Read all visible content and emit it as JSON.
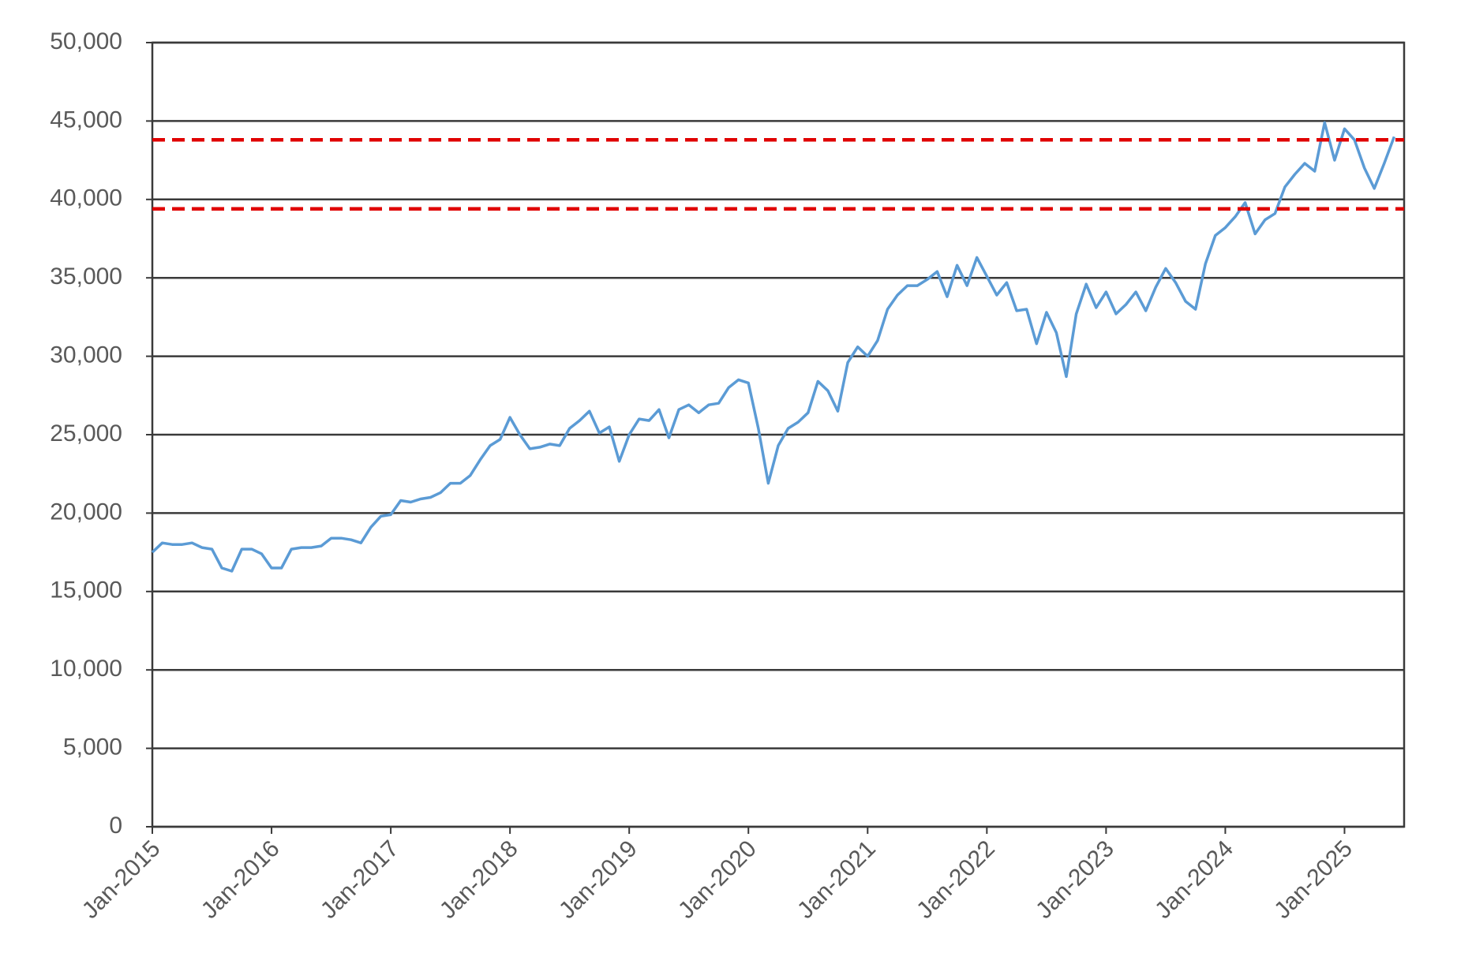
{
  "chart_data": {
    "type": "line",
    "x": [
      "2015-01",
      "2015-02",
      "2015-03",
      "2015-04",
      "2015-05",
      "2015-06",
      "2015-07",
      "2015-08",
      "2015-09",
      "2015-10",
      "2015-11",
      "2015-12",
      "2016-01",
      "2016-02",
      "2016-03",
      "2016-04",
      "2016-05",
      "2016-06",
      "2016-07",
      "2016-08",
      "2016-09",
      "2016-10",
      "2016-11",
      "2016-12",
      "2017-01",
      "2017-02",
      "2017-03",
      "2017-04",
      "2017-05",
      "2017-06",
      "2017-07",
      "2017-08",
      "2017-09",
      "2017-10",
      "2017-11",
      "2017-12",
      "2018-01",
      "2018-02",
      "2018-03",
      "2018-04",
      "2018-05",
      "2018-06",
      "2018-07",
      "2018-08",
      "2018-09",
      "2018-10",
      "2018-11",
      "2018-12",
      "2019-01",
      "2019-02",
      "2019-03",
      "2019-04",
      "2019-05",
      "2019-06",
      "2019-07",
      "2019-08",
      "2019-09",
      "2019-10",
      "2019-11",
      "2019-12",
      "2020-01",
      "2020-02",
      "2020-03",
      "2020-04",
      "2020-05",
      "2020-06",
      "2020-07",
      "2020-08",
      "2020-09",
      "2020-10",
      "2020-11",
      "2020-12",
      "2021-01",
      "2021-02",
      "2021-03",
      "2021-04",
      "2021-05",
      "2021-06",
      "2021-07",
      "2021-08",
      "2021-09",
      "2021-10",
      "2021-11",
      "2021-12",
      "2022-01",
      "2022-02",
      "2022-03",
      "2022-04",
      "2022-05",
      "2022-06",
      "2022-07",
      "2022-08",
      "2022-09",
      "2022-10",
      "2022-11",
      "2022-12",
      "2023-01",
      "2023-02",
      "2023-03",
      "2023-04",
      "2023-05",
      "2023-06",
      "2023-07",
      "2023-08",
      "2023-09",
      "2023-10",
      "2023-11",
      "2023-12",
      "2024-01",
      "2024-02",
      "2024-03",
      "2024-04",
      "2024-05",
      "2024-06",
      "2024-07",
      "2024-08",
      "2024-09",
      "2024-10",
      "2024-11",
      "2024-12",
      "2025-01",
      "2025-02",
      "2025-03",
      "2025-04",
      "2025-05",
      "2025-06"
    ],
    "values": [
      17500,
      18100,
      18000,
      18000,
      18100,
      17800,
      17700,
      16500,
      16300,
      17700,
      17700,
      17400,
      16500,
      16500,
      17700,
      17800,
      17800,
      17900,
      18400,
      18400,
      18300,
      18100,
      19100,
      19800,
      19900,
      20800,
      20700,
      20900,
      21000,
      21300,
      21900,
      21900,
      22400,
      23400,
      24300,
      24700,
      26100,
      25000,
      24100,
      24200,
      24400,
      24300,
      25400,
      25900,
      26500,
      25100,
      25500,
      23300,
      25000,
      26000,
      25900,
      26600,
      24800,
      26600,
      26900,
      26400,
      26900,
      27000,
      28000,
      28500,
      28300,
      25400,
      21900,
      24300,
      25400,
      25800,
      26400,
      28400,
      27800,
      26500,
      29600,
      30600,
      30000,
      31000,
      33000,
      33900,
      34500,
      34500,
      34900,
      35400,
      33800,
      35800,
      34500,
      36300,
      35100,
      33900,
      34700,
      32900,
      33000,
      30800,
      32800,
      31500,
      28700,
      32700,
      34600,
      33100,
      34100,
      32700,
      33300,
      34100,
      32900,
      34400,
      35600,
      34700,
      33500,
      33000,
      35900,
      37700,
      38200,
      38900,
      39800,
      37800,
      38700,
      39100,
      40800,
      41600,
      42300,
      41800,
      44900,
      42500,
      44500,
      43800,
      42000,
      40700,
      42300,
      44000
    ],
    "color": "#5b9bd5",
    "xlim": [
      "2015-01",
      "2025-07"
    ],
    "xticks": [
      {
        "value": "2015-01",
        "label": "Jan-2015"
      },
      {
        "value": "2016-01",
        "label": "Jan-2016"
      },
      {
        "value": "2017-01",
        "label": "Jan-2017"
      },
      {
        "value": "2018-01",
        "label": "Jan-2018"
      },
      {
        "value": "2019-01",
        "label": "Jan-2019"
      },
      {
        "value": "2020-01",
        "label": "Jan-2020"
      },
      {
        "value": "2021-01",
        "label": "Jan-2021"
      },
      {
        "value": "2022-01",
        "label": "Jan-2022"
      },
      {
        "value": "2023-01",
        "label": "Jan-2023"
      },
      {
        "value": "2024-01",
        "label": "Jan-2024"
      },
      {
        "value": "2025-01",
        "label": "Jan-2025"
      }
    ],
    "ylim": [
      0,
      50000
    ],
    "yticks": [
      0,
      {
        "value": 5000,
        "label": "5,000"
      },
      {
        "value": 10000,
        "label": "10,000"
      },
      {
        "value": 15000,
        "label": "15,000"
      },
      {
        "value": 20000,
        "label": "20,000"
      },
      {
        "value": 25000,
        "label": "25,000"
      },
      {
        "value": 30000,
        "label": "30,000"
      },
      {
        "value": 35000,
        "label": "35,000"
      },
      {
        "value": 40000,
        "label": "40,000"
      },
      {
        "value": 45000,
        "label": "45,000"
      },
      {
        "value": 50000,
        "label": "50,000"
      }
    ],
    "grid": true,
    "reference_lines": [
      {
        "value": 43800,
        "color": "#e00000"
      },
      {
        "value": 39400,
        "color": "#e00000"
      }
    ]
  }
}
